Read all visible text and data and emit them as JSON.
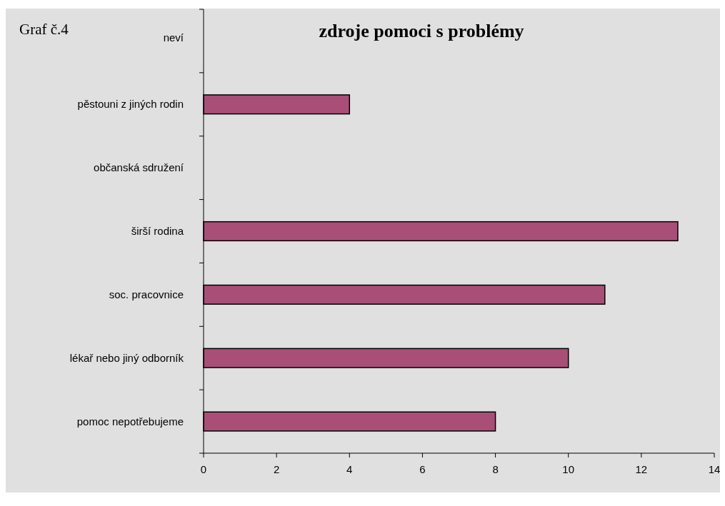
{
  "chart_data": {
    "type": "bar",
    "orientation": "horizontal",
    "title": "zdroje pomoci s problémy",
    "annotations": [
      "Graf č.4"
    ],
    "categories": [
      "neví",
      "pěstouni z jiných rodin",
      "občanská sdružení",
      "širší rodina",
      "soc. pracovnice",
      "lékař nebo jiný odborník",
      "pomoc nepotřebujeme"
    ],
    "values": [
      0,
      4,
      0,
      13,
      11,
      10,
      8
    ],
    "color": "#a94f77",
    "xlim": [
      0,
      14
    ],
    "xticks": [
      0,
      2,
      4,
      6,
      8,
      10,
      12,
      14
    ]
  }
}
